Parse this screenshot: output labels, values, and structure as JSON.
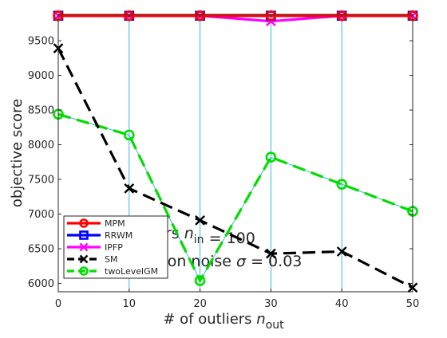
{
  "chart_data": {
    "type": "line",
    "xlabel": "# of outliers",
    "xlabel_var": "n",
    "xlabel_sub": "out",
    "ylabel": "objective score",
    "xlim": [
      0,
      50
    ],
    "ylim": [
      5880,
      9880
    ],
    "x_ticks": [
      0,
      10,
      20,
      30,
      40,
      50
    ],
    "y_ticks": [
      6000,
      6500,
      7000,
      7500,
      8000,
      8500,
      9000,
      9500
    ],
    "grid": "vertical lines only",
    "legend_position": "bottom-left",
    "x": [
      0,
      10,
      20,
      30,
      40,
      50
    ],
    "series": [
      {
        "name": "MPM",
        "color": "#ff0000",
        "marker": "circle",
        "dash": "solid",
        "values": [
          9860,
          9860,
          9860,
          9860,
          9860,
          9860
        ]
      },
      {
        "name": "RRWM",
        "color": "#0000ff",
        "marker": "square",
        "dash": "solid",
        "values": [
          9860,
          9860,
          9860,
          9860,
          9860,
          9860
        ]
      },
      {
        "name": "IPFP",
        "color": "#ff00ff",
        "marker": "x",
        "dash": "solid",
        "values": [
          9860,
          9860,
          9860,
          9780,
          9860,
          9860
        ]
      },
      {
        "name": "SM",
        "color": "#000000",
        "marker": "x",
        "dash": "dashed",
        "values": [
          9390,
          7370,
          6910,
          6430,
          6460,
          5940
        ]
      },
      {
        "name": "twoLevelGM",
        "color": "#00dd00",
        "marker": "circle",
        "dash": "dashed",
        "values": [
          8440,
          8140,
          6040,
          7820,
          7430,
          7040
        ]
      }
    ],
    "annotations": [
      {
        "segments": [
          {
            "text": "rs "
          },
          {
            "text": "n",
            "style": "italic"
          },
          {
            "text": "in",
            "sub": true
          },
          {
            "text": " = 100"
          }
        ]
      },
      {
        "segments": [
          {
            "text": "tion noise "
          },
          {
            "text": "σ",
            "style": "italic"
          },
          {
            "text": " = 0.03"
          }
        ]
      }
    ]
  }
}
